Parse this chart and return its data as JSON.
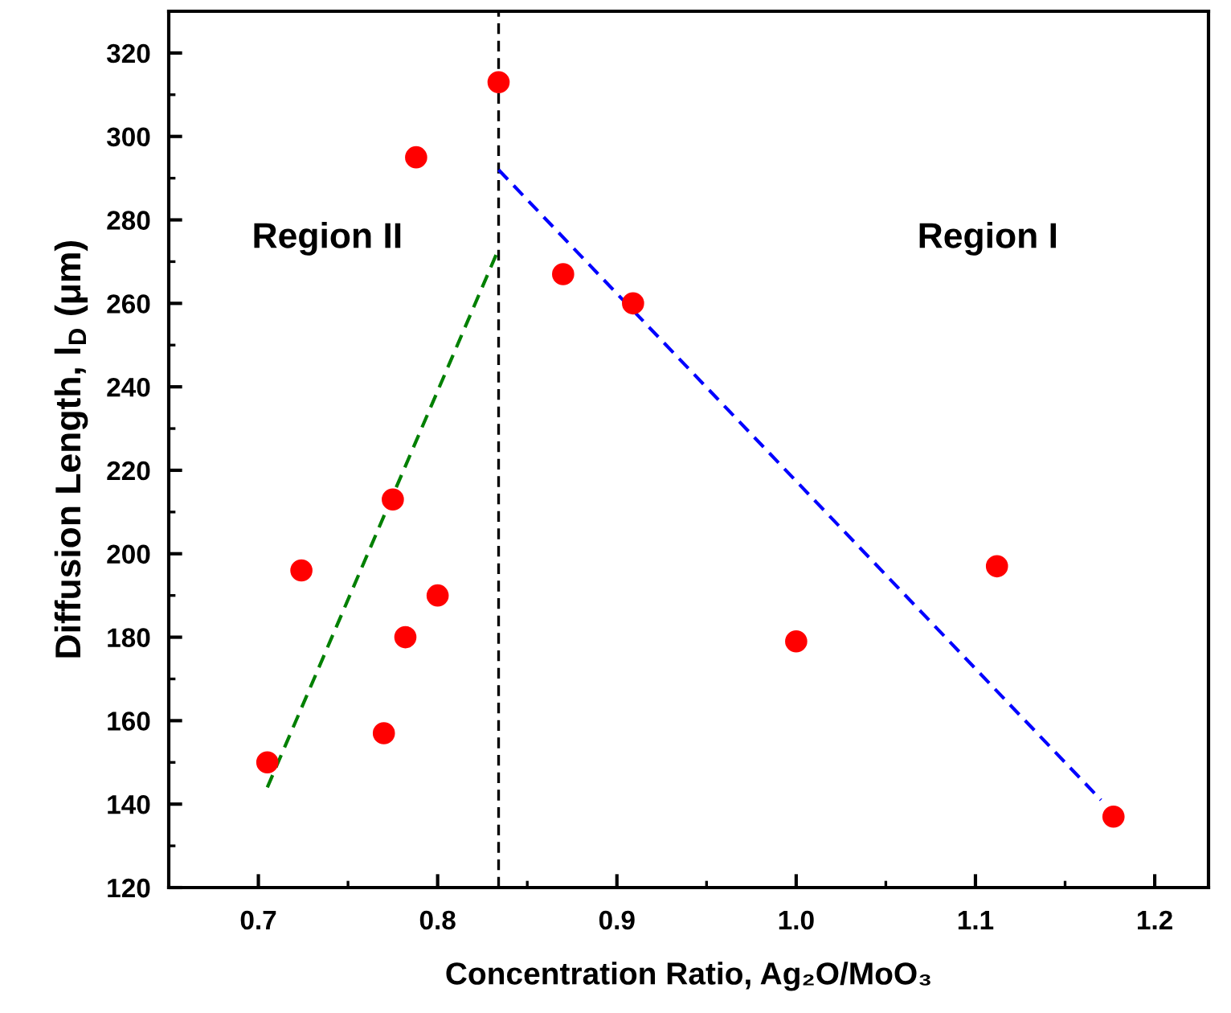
{
  "chart_data": {
    "type": "scatter",
    "xlabel": "Concentration Ratio, Ag₂O/MoO₃",
    "ylabel": "Diffusion Length, l$_{D}$ (μm)",
    "annotations": [
      "Region II",
      "Region I"
    ],
    "series": [
      {
        "color": "#ff0000",
        "marker": "circle",
        "x": [
          0.705,
          0.724,
          0.77,
          0.775,
          0.782,
          0.788,
          0.8,
          0.834,
          0.87,
          0.909,
          1.0,
          1.112,
          1.177
        ],
        "values": [
          150,
          196,
          157,
          213,
          180,
          295,
          190,
          313,
          267,
          260,
          179,
          197,
          137
        ]
      },
      {
        "type": "line",
        "color": "#008000",
        "line_style": "dashed",
        "marker": "none",
        "x": [
          0.705,
          0.833
        ],
        "values": [
          144,
          272
        ]
      },
      {
        "type": "line",
        "color": "#0000ff",
        "line_style": "dashed",
        "marker": "none",
        "x": [
          0.834,
          1.17
        ],
        "values": [
          292,
          141
        ]
      }
    ],
    "ref_lines": [
      {
        "axis": "x",
        "value": 0.834,
        "color": "#000000",
        "line_style": "dashed"
      }
    ],
    "xlim": [
      0.65,
      1.23
    ],
    "xticks": [
      {
        "value": 0.7,
        "label": "0.7"
      },
      {
        "value": 0.8,
        "label": "0.8"
      },
      {
        "value": 0.9,
        "label": "0.9"
      },
      {
        "value": 1.0,
        "label": "1.0"
      },
      {
        "value": 1.1,
        "label": "1.1"
      },
      {
        "value": 1.2,
        "label": "1.2"
      }
    ],
    "ylim": [
      120,
      330
    ],
    "yticks": [
      120,
      140,
      160,
      180,
      200,
      220,
      240,
      260,
      280,
      300,
      320
    ],
    "grid": false
  }
}
